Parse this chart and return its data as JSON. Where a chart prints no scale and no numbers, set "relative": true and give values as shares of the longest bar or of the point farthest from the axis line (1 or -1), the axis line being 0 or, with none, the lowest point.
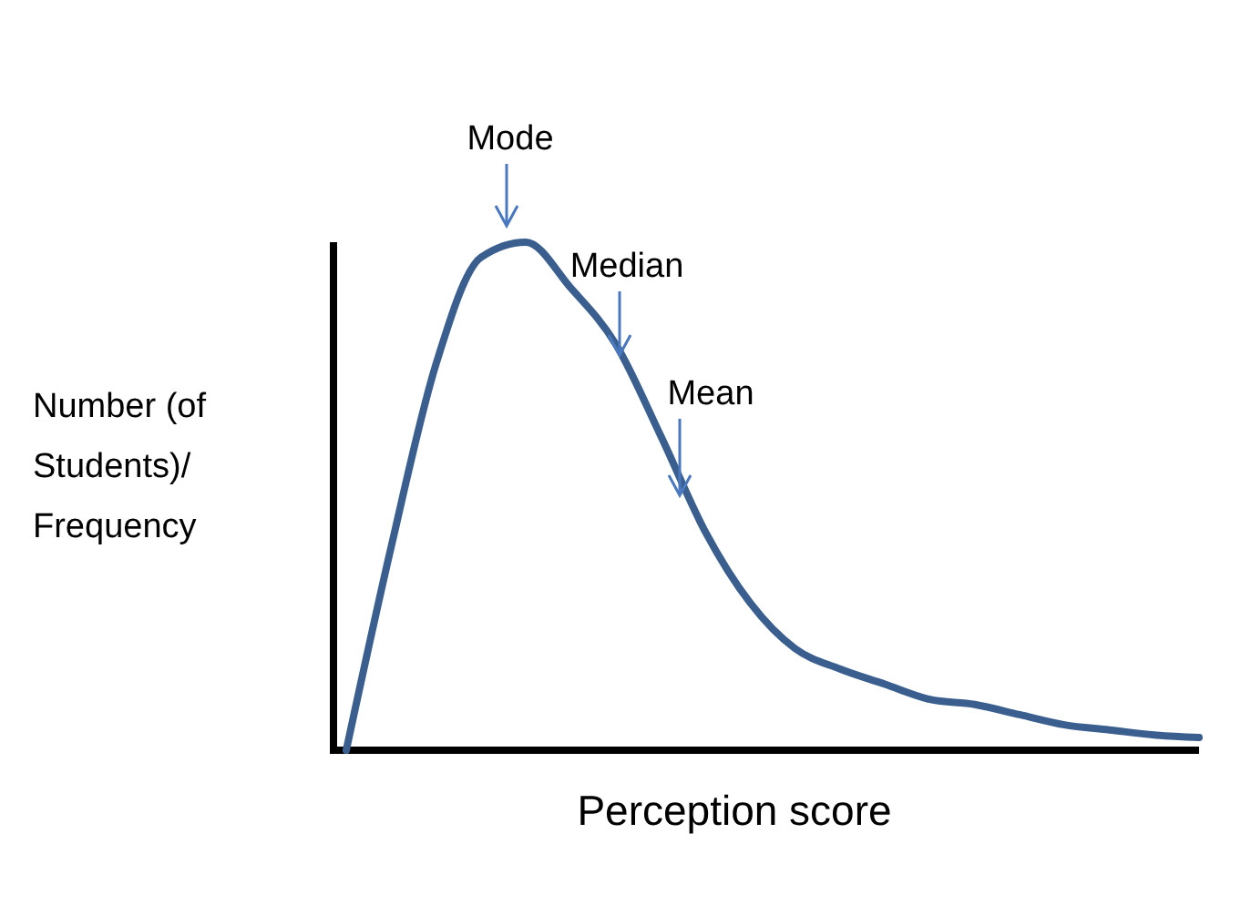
{
  "chart_data": {
    "type": "line",
    "relative": true,
    "xlabel": "Perception score",
    "ylabel": "Number (of Students)/ Frequency",
    "categories": [
      null,
      null,
      null,
      null,
      null,
      null,
      null,
      null,
      null,
      null,
      null,
      null,
      null,
      null,
      null,
      null,
      null,
      null,
      null,
      null
    ],
    "series": [
      {
        "color": "#3a5f8f",
        "values": [
          0,
          0.4,
          0.76,
          0.97,
          1,
          0.91,
          0.8,
          0.62,
          0.43,
          0.29,
          0.2,
          0.16,
          0.13,
          0.1,
          0.09,
          0.07,
          0.05,
          0.04,
          0.03,
          0.025
        ]
      }
    ],
    "annotations": [
      "Mode",
      "Median",
      "Mean"
    ],
    "grid": false,
    "marker": "none",
    "line_style": "solid"
  }
}
